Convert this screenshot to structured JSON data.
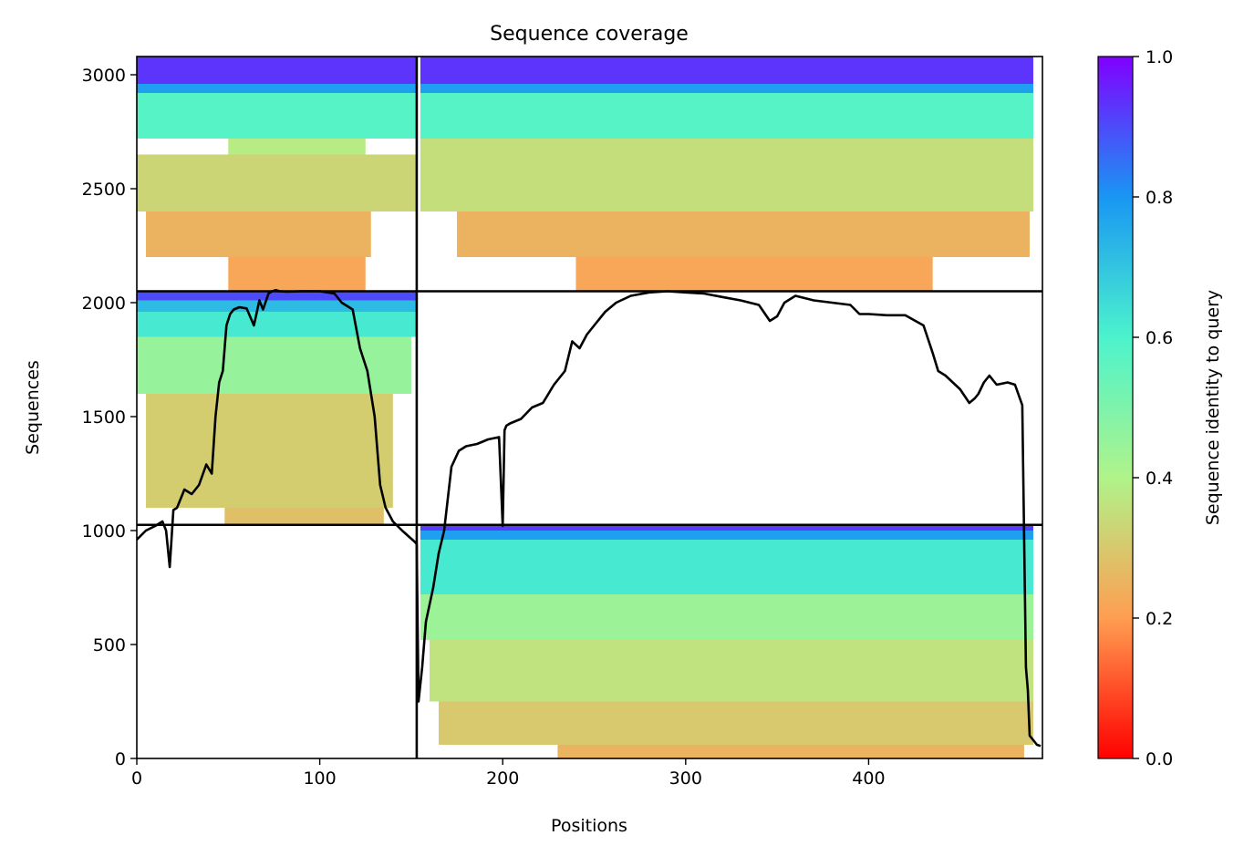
{
  "chart_data": {
    "type": "heatmap",
    "title": "Sequence coverage",
    "xlabel": "Positions",
    "ylabel": "Sequences",
    "xlim": [
      0,
      495
    ],
    "ylim": [
      0,
      3080
    ],
    "x_ticks": [
      0,
      100,
      200,
      300,
      400
    ],
    "y_ticks": [
      0,
      500,
      1000,
      1500,
      2000,
      2500,
      3000
    ],
    "grid": false,
    "colormap": "rainbow",
    "colorbar": {
      "label": "Sequence identity to query",
      "range": [
        0,
        1
      ],
      "ticks": [
        0.0,
        0.2,
        0.4,
        0.6,
        0.8,
        1.0
      ],
      "tick_labels": [
        "0.0",
        "0.2",
        "0.4",
        "0.6",
        "0.8",
        "1.0"
      ]
    },
    "segment_boundaries": {
      "x": [
        153
      ],
      "y": [
        1025,
        2050
      ]
    },
    "blocks": [
      {
        "name": "top-left",
        "x_range": [
          0,
          153
        ],
        "y_range": [
          2050,
          3080
        ],
        "bands": [
          {
            "y0": 2050,
            "y1": 2200,
            "identity": 0.22,
            "x0": 50,
            "x1": 125
          },
          {
            "y0": 2200,
            "y1": 2400,
            "identity": 0.25,
            "x0": 5,
            "x1": 128
          },
          {
            "y0": 2400,
            "y1": 2650,
            "identity": 0.33,
            "x0": 0,
            "x1": 153
          },
          {
            "y0": 2650,
            "y1": 2720,
            "identity": 0.38,
            "x0": 50,
            "x1": 125
          },
          {
            "y0": 2720,
            "y1": 2920,
            "identity": 0.58,
            "x0": 0,
            "x1": 153
          },
          {
            "y0": 2920,
            "y1": 2960,
            "identity": 0.78,
            "x0": 0,
            "x1": 153
          },
          {
            "y0": 2960,
            "y1": 3080,
            "identity": 0.93,
            "x0": 0,
            "x1": 153
          }
        ]
      },
      {
        "name": "top-right",
        "x_range": [
          153,
          495
        ],
        "y_range": [
          2050,
          3080
        ],
        "bands": [
          {
            "y0": 2050,
            "y1": 2200,
            "identity": 0.22,
            "x0": 240,
            "x1": 435
          },
          {
            "y0": 2200,
            "y1": 2400,
            "identity": 0.25,
            "x0": 175,
            "x1": 488
          },
          {
            "y0": 2400,
            "y1": 2720,
            "identity": 0.35,
            "x0": 155,
            "x1": 490
          },
          {
            "y0": 2720,
            "y1": 2920,
            "identity": 0.58,
            "x0": 155,
            "x1": 490
          },
          {
            "y0": 2920,
            "y1": 2960,
            "identity": 0.78,
            "x0": 155,
            "x1": 490
          },
          {
            "y0": 2960,
            "y1": 3080,
            "identity": 0.93,
            "x0": 155,
            "x1": 490
          }
        ]
      },
      {
        "name": "middle-left",
        "x_range": [
          0,
          153
        ],
        "y_range": [
          1025,
          2050
        ],
        "bands": [
          {
            "y0": 1025,
            "y1": 1100,
            "identity": 0.28,
            "x0": 48,
            "x1": 135
          },
          {
            "y0": 1100,
            "y1": 1600,
            "identity": 0.31,
            "x0": 5,
            "x1": 140
          },
          {
            "y0": 1600,
            "y1": 1850,
            "identity": 0.45,
            "x0": 0,
            "x1": 150
          },
          {
            "y0": 1850,
            "y1": 1960,
            "identity": 0.62,
            "x0": 0,
            "x1": 153
          },
          {
            "y0": 1960,
            "y1": 2010,
            "identity": 0.72,
            "x0": 0,
            "x1": 153
          },
          {
            "y0": 2010,
            "y1": 2050,
            "identity": 0.9,
            "x0": 0,
            "x1": 153
          }
        ]
      },
      {
        "name": "bottom-right",
        "x_range": [
          153,
          495
        ],
        "y_range": [
          0,
          1025
        ],
        "bands": [
          {
            "y0": 0,
            "y1": 60,
            "identity": 0.25,
            "x0": 230,
            "x1": 485
          },
          {
            "y0": 60,
            "y1": 250,
            "identity": 0.3,
            "x0": 165,
            "x1": 490
          },
          {
            "y0": 250,
            "y1": 520,
            "identity": 0.36,
            "x0": 160,
            "x1": 490
          },
          {
            "y0": 520,
            "y1": 720,
            "identity": 0.44,
            "x0": 155,
            "x1": 490
          },
          {
            "y0": 720,
            "y1": 960,
            "identity": 0.62,
            "x0": 155,
            "x1": 490
          },
          {
            "y0": 960,
            "y1": 1000,
            "identity": 0.78,
            "x0": 155,
            "x1": 490
          },
          {
            "y0": 1000,
            "y1": 1025,
            "identity": 0.92,
            "x0": 155,
            "x1": 490
          }
        ]
      }
    ],
    "coverage_line": {
      "color": "#000000",
      "x": [
        0,
        5,
        10,
        14,
        16,
        18,
        20,
        22,
        26,
        30,
        34,
        38,
        41,
        43,
        45,
        47,
        49,
        51,
        53,
        56,
        60,
        64,
        67,
        69,
        72,
        74,
        76,
        78,
        82,
        90,
        100,
        108,
        112,
        118,
        122,
        126,
        130,
        133,
        136,
        140,
        145,
        152,
        153,
        154,
        156,
        158,
        162,
        165,
        168,
        172,
        176,
        180,
        186,
        192,
        198,
        200,
        201,
        202,
        204,
        210,
        216,
        222,
        228,
        234,
        238,
        242,
        246,
        250,
        256,
        262,
        270,
        280,
        290,
        300,
        310,
        320,
        330,
        340,
        346,
        350,
        354,
        360,
        370,
        380,
        390,
        395,
        400,
        410,
        420,
        430,
        435,
        438,
        442,
        450,
        455,
        458,
        460,
        463,
        466,
        470,
        476,
        480,
        484,
        486,
        487,
        488,
        490,
        492,
        494
      ],
      "y": [
        960,
        1000,
        1020,
        1040,
        1000,
        840,
        1090,
        1100,
        1180,
        1160,
        1200,
        1290,
        1250,
        1500,
        1650,
        1700,
        1900,
        1950,
        1970,
        1980,
        1975,
        1900,
        2010,
        1970,
        2040,
        2050,
        2055,
        2050,
        2048,
        2050,
        2050,
        2040,
        2000,
        1970,
        1800,
        1700,
        1500,
        1200,
        1100,
        1040,
        1000,
        950,
        940,
        250,
        400,
        600,
        750,
        900,
        1000,
        1280,
        1350,
        1370,
        1380,
        1400,
        1410,
        1020,
        1440,
        1460,
        1470,
        1490,
        1540,
        1560,
        1640,
        1700,
        1830,
        1800,
        1860,
        1900,
        1960,
        2000,
        2030,
        2045,
        2050,
        2045,
        2040,
        2025,
        2010,
        1990,
        1920,
        1940,
        2000,
        2030,
        2010,
        2000,
        1990,
        1950,
        1950,
        1945,
        1945,
        1900,
        1780,
        1700,
        1680,
        1620,
        1560,
        1580,
        1600,
        1650,
        1680,
        1640,
        1650,
        1640,
        1550,
        400,
        300,
        100,
        80,
        60,
        55
      ]
    }
  }
}
